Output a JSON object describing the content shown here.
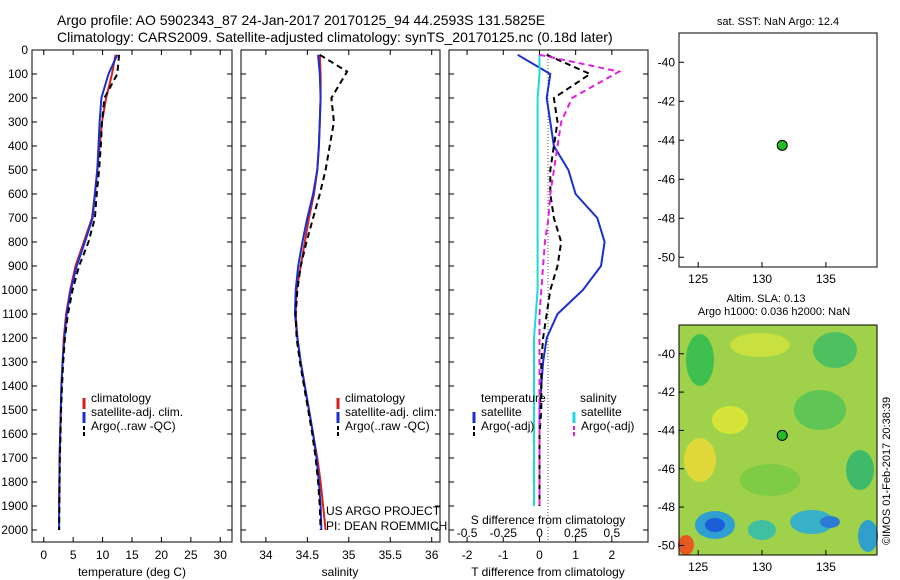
{
  "header": {
    "title_line1": "Argo profile: AO 5902343_87 24-Jan-2017 20170125_94 44.2593S 131.5825E",
    "title_line2": "Climatology: CARS2009. Satellite-adjusted climatology: synTS_20170125.nc (0.18d later)"
  },
  "colors": {
    "climatology": "#d42020",
    "satellite": "#1a2fd0",
    "argo": "#000000",
    "salinity_sat": "#20d8e0",
    "salinity_argo": "#e020e0",
    "marker": "#22bb22"
  },
  "chart_data": [
    {
      "type": "line",
      "xlabel": "temperature (deg C)",
      "ylabel": "",
      "xlim": [
        -2,
        32
      ],
      "ylim": [
        2050,
        0
      ],
      "xticks": [
        0,
        5,
        10,
        15,
        20,
        25,
        30
      ],
      "yticks": [
        0,
        100,
        200,
        300,
        400,
        500,
        600,
        700,
        800,
        900,
        1000,
        1100,
        1200,
        1300,
        1400,
        1500,
        1600,
        1700,
        1800,
        1900,
        2000
      ],
      "legend": [
        "climatology",
        "satellite-adj. clim.",
        "Argo(..raw -QC)"
      ],
      "series": [
        {
          "name": "climatology",
          "color": "#d42020",
          "dash": "",
          "x": [
            12.2,
            11.6,
            10.6,
            9.9,
            9.5,
            9.1,
            8.7,
            8.2,
            6.8,
            5.4,
            4.5,
            3.8,
            3.4,
            3.2,
            3.0,
            2.9,
            2.8,
            2.7,
            2.65,
            2.6
          ],
          "y": [
            20,
            100,
            200,
            300,
            400,
            500,
            600,
            700,
            800,
            900,
            1000,
            1100,
            1200,
            1300,
            1400,
            1500,
            1600,
            1700,
            1800,
            1900
          ]
        },
        {
          "name": "satellite-adj. clim.",
          "color": "#1a2fd0",
          "dash": "",
          "x": [
            12.5,
            11.0,
            9.8,
            9.5,
            9.3,
            9.1,
            8.7,
            8.3,
            7.0,
            5.6,
            4.6,
            3.9,
            3.5,
            3.2,
            3.0,
            2.9,
            2.8,
            2.7,
            2.65,
            2.6,
            2.6
          ],
          "y": [
            20,
            100,
            200,
            300,
            400,
            500,
            600,
            700,
            800,
            900,
            1000,
            1100,
            1200,
            1300,
            1400,
            1500,
            1600,
            1700,
            1800,
            1900,
            2000
          ]
        },
        {
          "name": "Argo(..raw -QC)",
          "color": "#000000",
          "dash": "6,4",
          "x": [
            12.8,
            12.5,
            10.3,
            9.9,
            9.7,
            9.4,
            9.0,
            8.7,
            7.6,
            6.0,
            4.9,
            4.1,
            3.6,
            3.3,
            3.1,
            2.95,
            2.85,
            2.75,
            2.7,
            2.65,
            2.6
          ],
          "y": [
            20,
            100,
            200,
            300,
            400,
            500,
            600,
            700,
            800,
            900,
            1000,
            1100,
            1200,
            1300,
            1400,
            1500,
            1600,
            1700,
            1800,
            1900,
            2000
          ]
        }
      ]
    },
    {
      "type": "line",
      "xlabel": "salinity",
      "xlim": [
        33.7,
        36.1
      ],
      "ylim": [
        2050,
        0
      ],
      "xticks": [
        34,
        34.5,
        35,
        35.5,
        36
      ],
      "yticks": [
        0,
        100,
        200,
        300,
        400,
        500,
        600,
        700,
        800,
        900,
        1000,
        1100,
        1200,
        1300,
        1400,
        1500,
        1600,
        1700,
        1800,
        1900,
        2000
      ],
      "legend": [
        "climatology",
        "satellite-adj. clim.",
        "Argo(..raw -QC)"
      ],
      "series": [
        {
          "name": "climatology",
          "color": "#d42020",
          "dash": "",
          "x": [
            34.65,
            34.66,
            34.66,
            34.65,
            34.64,
            34.62,
            34.58,
            34.52,
            34.47,
            34.42,
            34.37,
            34.36,
            34.38,
            34.42,
            34.47,
            34.52,
            34.57,
            34.62,
            34.66,
            34.69,
            34.72
          ],
          "y": [
            20,
            100,
            200,
            300,
            400,
            500,
            600,
            700,
            800,
            900,
            1000,
            1100,
            1200,
            1300,
            1400,
            1500,
            1600,
            1700,
            1800,
            1900,
            2000
          ]
        },
        {
          "name": "satellite-adj. clim.",
          "color": "#1a2fd0",
          "dash": "",
          "x": [
            34.63,
            34.65,
            34.66,
            34.65,
            34.64,
            34.62,
            34.57,
            34.5,
            34.44,
            34.39,
            34.36,
            34.35,
            34.38,
            34.42,
            34.47,
            34.52,
            34.57,
            34.61,
            34.64,
            34.66,
            34.67
          ],
          "y": [
            20,
            100,
            200,
            300,
            400,
            500,
            600,
            700,
            800,
            900,
            1000,
            1100,
            1200,
            1300,
            1400,
            1500,
            1600,
            1700,
            1800,
            1900,
            2000
          ]
        },
        {
          "name": "Argo(..raw -QC)",
          "color": "#000000",
          "dash": "6,4",
          "x": [
            34.65,
            34.98,
            34.79,
            34.82,
            34.77,
            34.72,
            34.65,
            34.57,
            34.49,
            34.42,
            34.38,
            34.36,
            34.37,
            34.41,
            34.46,
            34.51,
            34.56,
            34.6,
            34.63,
            34.65,
            34.66
          ],
          "y": [
            20,
            90,
            200,
            300,
            400,
            500,
            600,
            700,
            800,
            900,
            1000,
            1100,
            1200,
            1300,
            1400,
            1500,
            1600,
            1700,
            1800,
            1900,
            2000
          ]
        }
      ]
    },
    {
      "type": "line",
      "xlabel": "T difference from climatology",
      "xlabel2": "S difference from climatology",
      "xlim": [
        -2.5,
        3
      ],
      "ylim": [
        2050,
        0
      ],
      "xticks": [
        -2,
        -1,
        0,
        1,
        2
      ],
      "xticks2": [
        "-0.5",
        "-0.25",
        "0",
        "0.25",
        "0.5"
      ],
      "yticks": [
        0,
        100,
        200,
        300,
        400,
        500,
        600,
        700,
        800,
        900,
        1000,
        1100,
        1200,
        1300,
        1400,
        1500,
        1600,
        1700,
        1800,
        1900,
        2000
      ],
      "legend_t_title": "temperature",
      "legend_s_title": "salinity",
      "legend": [
        "satellite",
        "Argo(-adj)",
        "satellite",
        "Argo(-adj)"
      ],
      "series": [
        {
          "name": "satellite",
          "color": "#1a2fd0",
          "dash": "",
          "x": [
            -0.6,
            0.3,
            0.2,
            0.3,
            0.4,
            0.8,
            1.0,
            1.6,
            1.8,
            1.7,
            1.2,
            0.5,
            0.2,
            0.1,
            0.05,
            0.0,
            0.0,
            0.0,
            0.0,
            0.0
          ],
          "y": [
            20,
            100,
            200,
            300,
            400,
            500,
            600,
            700,
            800,
            900,
            1000,
            1100,
            1200,
            1300,
            1400,
            1500,
            1600,
            1700,
            1800,
            1900
          ]
        },
        {
          "name": "Argo(-adj)",
          "color": "#000000",
          "dash": "6,4",
          "x": [
            0.2,
            1.4,
            0.4,
            0.5,
            0.4,
            0.3,
            0.3,
            0.4,
            0.6,
            0.5,
            0.3,
            0.2,
            0.1,
            0.05,
            0.05,
            0.05,
            0.0,
            0.0,
            0.0,
            0.0
          ],
          "y": [
            20,
            100,
            200,
            300,
            400,
            500,
            600,
            700,
            800,
            900,
            1000,
            1100,
            1200,
            1300,
            1400,
            1500,
            1600,
            1700,
            1800,
            1900
          ]
        },
        {
          "name": "satellite",
          "color": "#20d8e0",
          "dash": "",
          "x": [
            0.0,
            0.0,
            -0.05,
            -0.05,
            -0.05,
            -0.05,
            -0.05,
            -0.05,
            -0.05,
            -0.05,
            -0.05,
            -0.1,
            -0.15,
            -0.15,
            -0.15,
            -0.15,
            -0.15,
            -0.15,
            -0.15,
            -0.15
          ],
          "y": [
            20,
            100,
            200,
            300,
            400,
            500,
            600,
            700,
            800,
            900,
            1000,
            1100,
            1200,
            1300,
            1400,
            1500,
            1600,
            1700,
            1800,
            1900
          ]
        },
        {
          "name": "Argo(-adj)",
          "color": "#e020e0",
          "dash": "6,4",
          "x": [
            0.0,
            2.2,
            0.9,
            0.6,
            0.5,
            0.4,
            0.3,
            0.25,
            0.15,
            0.1,
            0.05,
            0.0,
            0.0,
            0.0,
            0.0,
            0.0,
            0.0,
            0.0,
            0.0,
            0.0
          ],
          "y": [
            20,
            90,
            200,
            300,
            400,
            500,
            600,
            700,
            800,
            900,
            1000,
            1100,
            1200,
            1300,
            1400,
            1500,
            1600,
            1700,
            1800,
            1900
          ]
        }
      ]
    },
    {
      "type": "scatter",
      "title": "sat. SST: NaN Argo: 12.4",
      "xlim": [
        123.5,
        139
      ],
      "ylim": [
        -50.5,
        -38.5
      ],
      "xticks": [
        125,
        130,
        135
      ],
      "yticks": [
        -40,
        -42,
        -44,
        -46,
        -48,
        -50
      ],
      "x": [
        131.58
      ],
      "y": [
        -44.26
      ]
    },
    {
      "type": "heatmap",
      "title_line1": "Altim. SLA: 0.13",
      "title_line2": "Argo h1000: 0.036 h2000: NaN",
      "xlim": [
        123.5,
        139
      ],
      "ylim": [
        -50.5,
        -38.5
      ],
      "xticks": [
        125,
        130,
        135
      ],
      "yticks": [
        -40,
        -42,
        -44,
        -46,
        -48,
        -50
      ],
      "marker": {
        "x": 131.58,
        "y": -44.26
      }
    }
  ],
  "annotations": {
    "project": "US ARGO PROJECT",
    "pi": "PI: DEAN ROEMMICH",
    "stamp": "©IMOS 01-Feb-2017 20:38:39"
  }
}
